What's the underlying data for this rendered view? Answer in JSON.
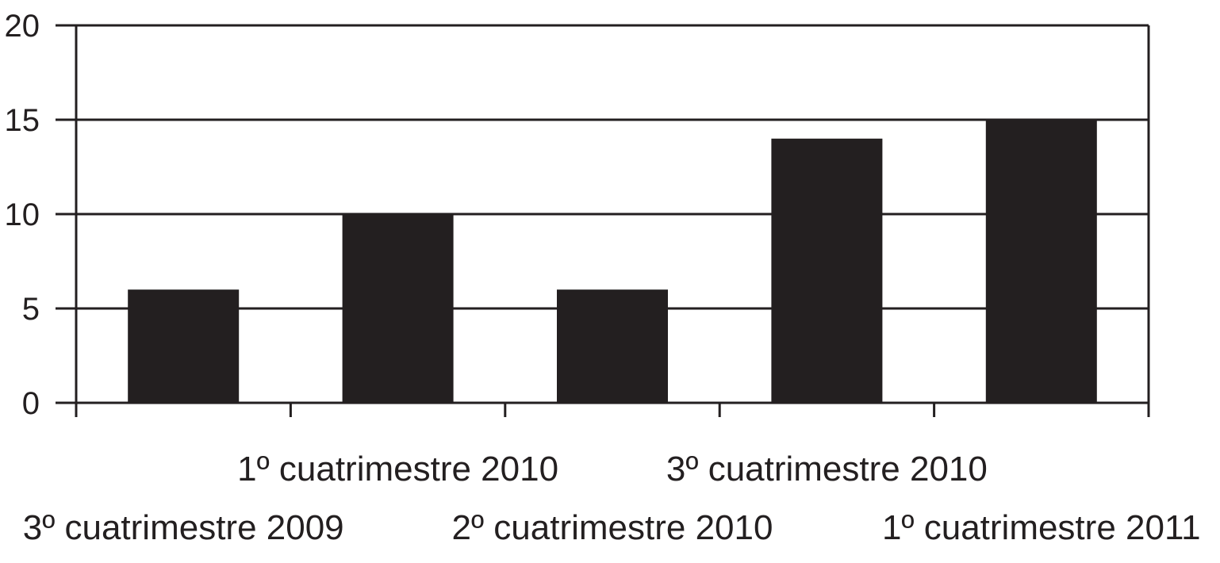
{
  "chart_data": {
    "type": "bar",
    "categories": [
      "3º cuatrimestre 2009",
      "1º cuatrimestre 2010",
      "2º cuatrimestre 2010",
      "3º cuatrimestre 2010",
      "1º cuatrimestre 2011"
    ],
    "values": [
      6,
      10,
      6,
      14,
      15
    ],
    "title": "",
    "xlabel": "",
    "ylabel": "",
    "ylim": [
      0,
      20
    ],
    "yticks": [
      0,
      5,
      10,
      15,
      20
    ],
    "ytick_labels": [
      "0",
      "5",
      "10",
      "15",
      "20"
    ],
    "grid": true,
    "legend": "none",
    "label_layout": "staggered",
    "colors": {
      "bar": "#231f20",
      "axis": "#231f20",
      "grid": "#231f20",
      "text": "#231f20"
    }
  }
}
